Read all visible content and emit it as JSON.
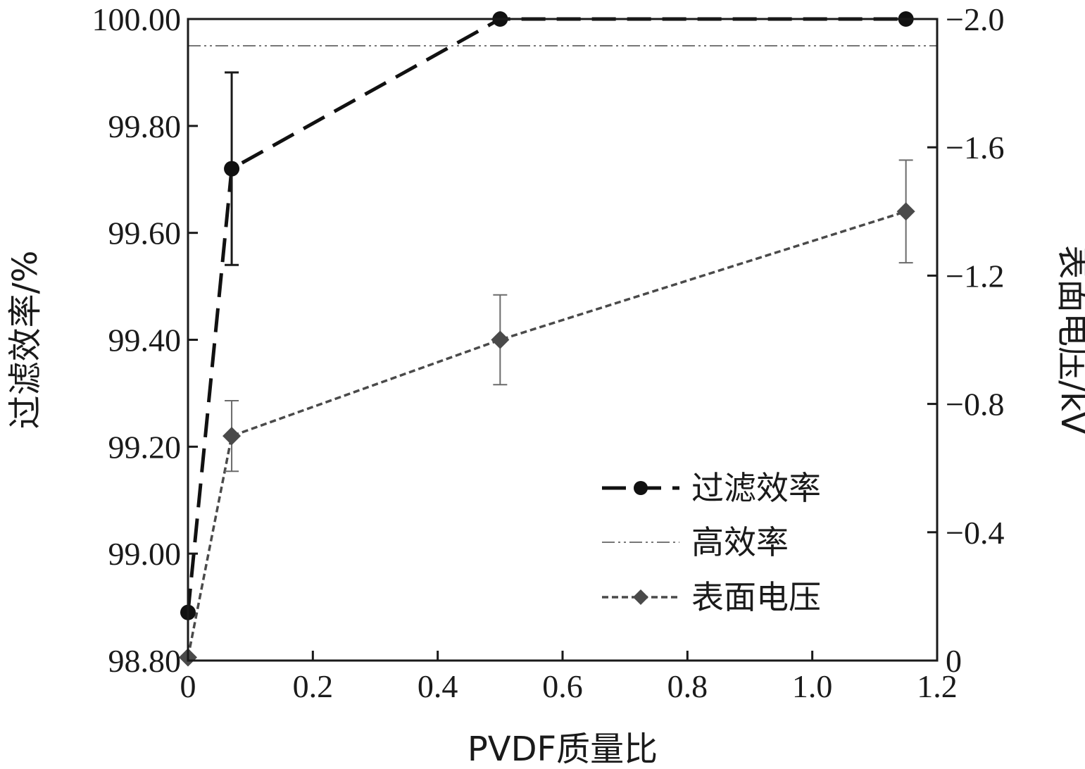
{
  "chart_data": {
    "type": "line",
    "xlabel": "PVDF质量比",
    "ylabel_left": "过滤效率/%",
    "ylabel_right": "表面电压/kV",
    "xlim": [
      0,
      1.2
    ],
    "ylim_left": [
      98.8,
      100.0
    ],
    "ylim_right": [
      0,
      -2.0
    ],
    "x_ticks": [
      "0",
      "0.2",
      "0.4",
      "0.6",
      "0.8",
      "1.0",
      "1.2"
    ],
    "y_left_ticks": [
      "98.80",
      "99.00",
      "99.20",
      "99.40",
      "99.60",
      "99.80",
      "100.00"
    ],
    "y_right_ticks": [
      "0",
      "−0.4",
      "−0.8",
      "−1.2",
      "−1.6",
      "−2.0"
    ],
    "grid": false,
    "legend_position": "lower-right",
    "series": [
      {
        "name": "过滤效率",
        "axis": "left",
        "style": "dashed",
        "marker": "circle",
        "color": "#111111",
        "x": [
          0,
          0.07,
          0.5,
          1.15
        ],
        "y": [
          98.89,
          99.72,
          100.0,
          100.0
        ],
        "error": [
          0,
          0.18,
          0,
          0
        ]
      },
      {
        "name": "高效率",
        "axis": "left",
        "style": "dash-dot-dot",
        "marker": "none",
        "color": "#777777",
        "x": [
          0,
          1.2
        ],
        "y": [
          99.95,
          99.95
        ]
      },
      {
        "name": "表面电压",
        "axis": "right",
        "style": "dotted",
        "marker": "diamond",
        "color": "#4a4a4a",
        "x": [
          0,
          0.07,
          0.5,
          1.15
        ],
        "y": [
          -0.01,
          -0.7,
          -1.0,
          -1.4
        ],
        "error": [
          0,
          0.11,
          0.14,
          0.16
        ]
      }
    ]
  }
}
